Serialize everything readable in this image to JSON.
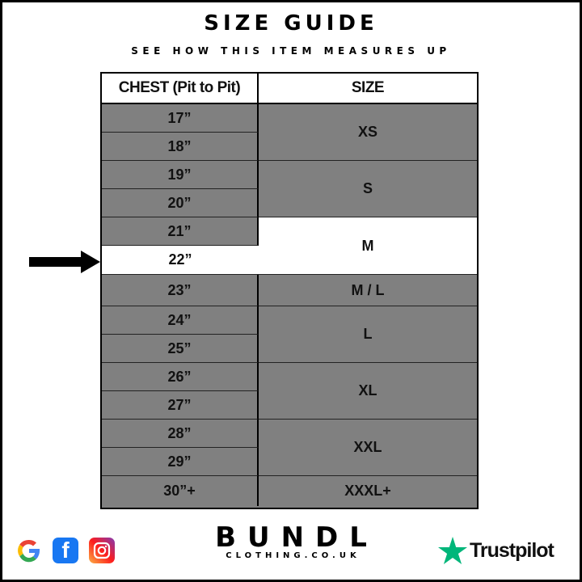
{
  "header": {
    "title": "SIZE GUIDE",
    "subtitle": "SEE HOW THIS ITEM MEASURES UP"
  },
  "table": {
    "columns": [
      "CHEST (Pit to Pit)",
      "SIZE"
    ],
    "chest": [
      "17”",
      "18”",
      "19”",
      "20”",
      "21”",
      "22”",
      "23”",
      "24”",
      "25”",
      "26”",
      "27”",
      "28”",
      "29”",
      "30”+"
    ],
    "sizes": [
      {
        "label": "XS",
        "rows": [
          0,
          1
        ]
      },
      {
        "label": "S",
        "rows": [
          2,
          3
        ]
      },
      {
        "label": "M",
        "rows": [
          4,
          5
        ],
        "highlighted": true
      },
      {
        "label": "M / L",
        "rows": [
          6,
          6
        ]
      },
      {
        "label": "L",
        "rows": [
          7,
          8
        ]
      },
      {
        "label": "XL",
        "rows": [
          9,
          10
        ]
      },
      {
        "label": "XXL",
        "rows": [
          11,
          12
        ]
      },
      {
        "label": "XXXL+",
        "rows": [
          13,
          13
        ]
      }
    ],
    "highlighted_chest_index": 5,
    "colors": {
      "cell": "#808080",
      "highlight": "#ffffff"
    }
  },
  "footer": {
    "brand": "BUNDL",
    "domain": "CLOTHING.CO.UK",
    "trustpilot": "Trustpilot",
    "social_icons": [
      "google-icon",
      "facebook-icon",
      "instagram-icon"
    ]
  }
}
